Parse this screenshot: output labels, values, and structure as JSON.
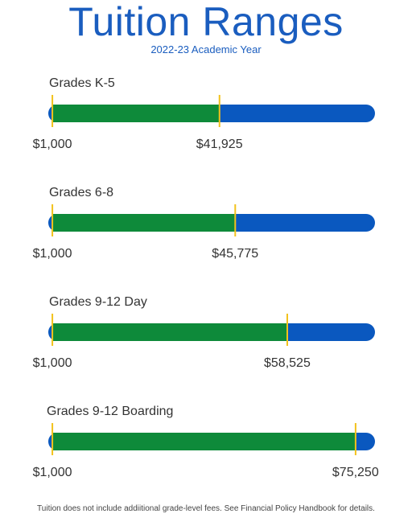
{
  "title": "Tuition Ranges",
  "subtitle": "2022-23 Academic Year",
  "footnote": "Tuition does not include addiitional grade-level fees. See Financial Policy Handbook for details.",
  "colors": {
    "background_bar": "#0a58bf",
    "range_fill": "#0e8a3a",
    "marker": "#f2c21b",
    "title": "#1a5dbf"
  },
  "chart_data": {
    "type": "bar",
    "orientation": "horizontal-range",
    "title": "Tuition Ranges",
    "subtitle": "2022-23 Academic Year",
    "xlim": [
      0,
      80000
    ],
    "categories": [
      "Grades K-5",
      "Grades 6-8",
      "Grades 9-12 Day",
      "Grades 9-12 Boarding"
    ],
    "ranges": [
      {
        "label": "Grades K-5",
        "min": 1000,
        "max": 41925,
        "min_label": "$1,000",
        "max_label": "$41,925"
      },
      {
        "label": "Grades 6-8",
        "min": 1000,
        "max": 45775,
        "min_label": "$1,000",
        "max_label": "$45,775"
      },
      {
        "label": "Grades 9-12 Day",
        "min": 1000,
        "max": 58525,
        "min_label": "$1,000",
        "max_label": "$58,525"
      },
      {
        "label": "Grades 9-12 Boarding",
        "min": 1000,
        "max": 75250,
        "min_label": "$1,000",
        "max_label": "$75,250"
      }
    ]
  }
}
